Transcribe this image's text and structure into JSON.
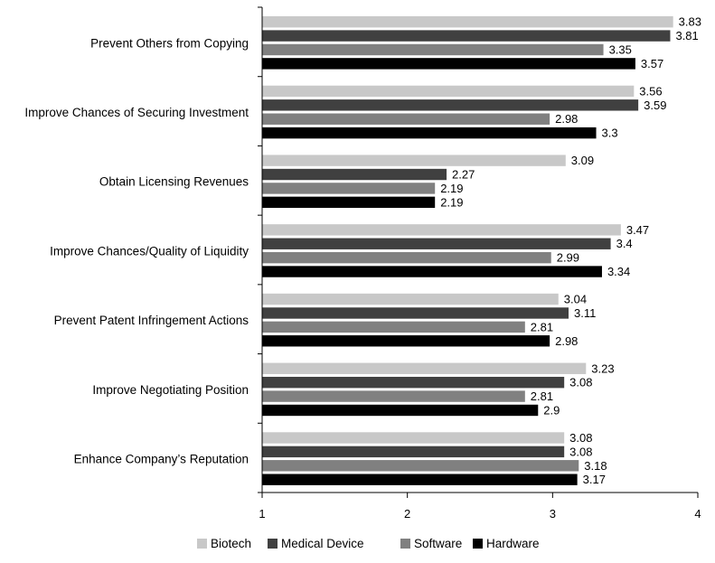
{
  "chart_data": {
    "type": "bar",
    "orientation": "horizontal",
    "title": "",
    "xlabel": "",
    "ylabel": "",
    "xlim": [
      1,
      4
    ],
    "xticks": [
      "1",
      "2",
      "3",
      "4"
    ],
    "grid": false,
    "legend": "bottom",
    "categories": [
      "Prevent Others from Copying",
      "Improve Chances of Securing Investment",
      "Obtain Licensing Revenues",
      "Improve Chances/Quality of Liquidity",
      "Prevent Patent Infringement Actions",
      "Improve Negotiating Position",
      "Enhance Company’s Reputation"
    ],
    "series": [
      {
        "name": "Biotech",
        "color": "#c8c8c8",
        "values": [
          3.83,
          3.56,
          3.09,
          3.47,
          3.04,
          3.23,
          3.08
        ],
        "labels": [
          "3.83",
          "3.56",
          "3.09",
          "3.47",
          "3.04",
          "3.23",
          "3.08"
        ]
      },
      {
        "name": "Medical Device",
        "color": "#404040",
        "values": [
          3.81,
          3.59,
          2.27,
          3.4,
          3.11,
          3.08,
          3.08
        ],
        "labels": [
          "3.81",
          "3.59",
          "2.27",
          "3.4",
          "3.11",
          "3.08",
          "3.08"
        ]
      },
      {
        "name": "Software",
        "color": "#808080",
        "values": [
          3.35,
          2.98,
          2.19,
          2.99,
          2.81,
          2.81,
          3.18
        ],
        "labels": [
          "3.35",
          "2.98",
          "2.19",
          "2.99",
          "2.81",
          "2.81",
          "3.18"
        ]
      },
      {
        "name": "Hardware",
        "color": "#000000",
        "values": [
          3.57,
          3.3,
          2.19,
          3.34,
          2.98,
          2.9,
          3.17
        ],
        "labels": [
          "3.57",
          "3.3",
          "2.19",
          "3.34",
          "2.98",
          "2.9",
          "3.17"
        ]
      }
    ]
  }
}
